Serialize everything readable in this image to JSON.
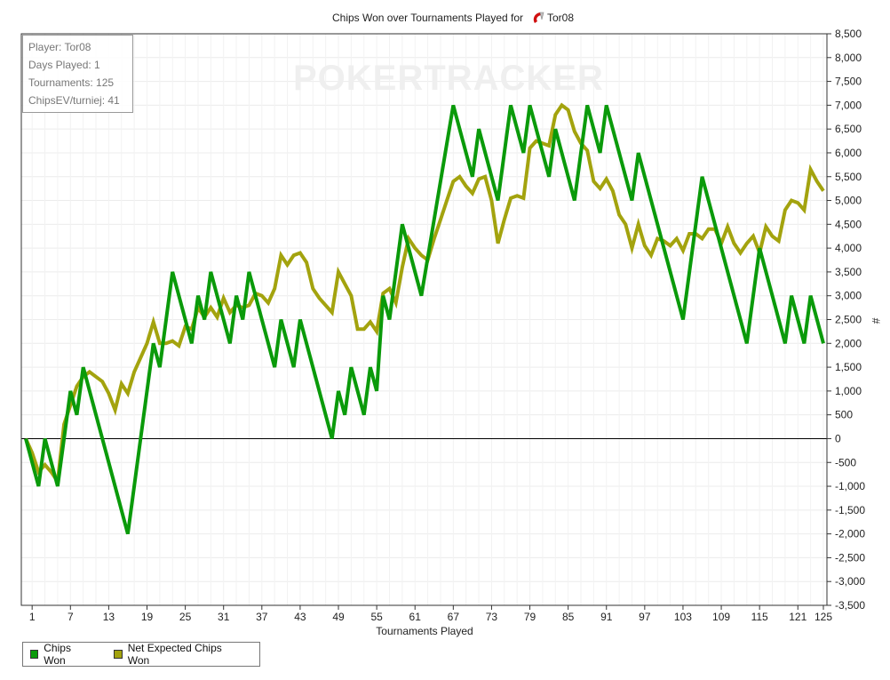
{
  "watermark": "POKERTRACKER",
  "info": {
    "player": "Player: Tor08",
    "days": "Days Played: 1",
    "tournaments": "Tournaments: 125",
    "chipsev": "ChipsEV/turniej: 41"
  },
  "chart_data": {
    "type": "line",
    "title": "Chips Won over Tournaments Played for",
    "title_player": "Tor08",
    "xlabel": "Tournaments Played",
    "ylabel": "#",
    "xlim": [
      0,
      125
    ],
    "ylim": [
      -3500,
      8500
    ],
    "x_ticks": [
      1,
      7,
      13,
      19,
      25,
      31,
      37,
      43,
      49,
      55,
      61,
      67,
      73,
      79,
      85,
      91,
      97,
      103,
      109,
      115,
      121,
      125
    ],
    "y_ticks": [
      8500,
      8000,
      7500,
      7000,
      6500,
      6000,
      5500,
      5000,
      4500,
      4000,
      3500,
      3000,
      2500,
      2000,
      1500,
      1000,
      500,
      0,
      -500,
      -1000,
      -1500,
      -2000,
      -2500,
      -3000,
      -3500
    ],
    "y_tick_labels": [
      "8,500",
      "8,000",
      "7,500",
      "7,000",
      "6,500",
      "6,000",
      "5,500",
      "5,000",
      "4,500",
      "4,000",
      "3,500",
      "3,000",
      "2,500",
      "2,000",
      "1,500",
      "1,000",
      "500",
      "0",
      "-500",
      "-1,000",
      "-1,500",
      "-2,000",
      "-2,500",
      "-3,000",
      "-3,500"
    ],
    "grid": true,
    "legend_position": "bottom-left",
    "series": [
      {
        "name": "Chips Won",
        "color": "#0a9a0a",
        "points": [
          [
            0,
            0
          ],
          [
            2,
            -1000
          ],
          [
            3,
            0
          ],
          [
            5,
            -1000
          ],
          [
            7,
            1000
          ],
          [
            8,
            500
          ],
          [
            9,
            1500
          ],
          [
            16,
            -2000
          ],
          [
            20,
            2000
          ],
          [
            21,
            1500
          ],
          [
            23,
            3500
          ],
          [
            26,
            2000
          ],
          [
            27,
            3000
          ],
          [
            28,
            2500
          ],
          [
            29,
            3500
          ],
          [
            32,
            2000
          ],
          [
            33,
            3000
          ],
          [
            34,
            2500
          ],
          [
            35,
            3500
          ],
          [
            39,
            1500
          ],
          [
            40,
            2500
          ],
          [
            42,
            1500
          ],
          [
            43,
            2500
          ],
          [
            48,
            0
          ],
          [
            49,
            1000
          ],
          [
            50,
            500
          ],
          [
            51,
            1500
          ],
          [
            53,
            500
          ],
          [
            54,
            1500
          ],
          [
            55,
            1000
          ],
          [
            56,
            3000
          ],
          [
            57,
            2500
          ],
          [
            59,
            4500
          ],
          [
            62,
            3000
          ],
          [
            67,
            7000
          ],
          [
            70,
            5500
          ],
          [
            71,
            6500
          ],
          [
            74,
            5000
          ],
          [
            76,
            7000
          ],
          [
            78,
            6000
          ],
          [
            79,
            7000
          ],
          [
            82,
            5500
          ],
          [
            83,
            6500
          ],
          [
            86,
            5000
          ],
          [
            88,
            7000
          ],
          [
            90,
            6000
          ],
          [
            91,
            7000
          ],
          [
            95,
            5000
          ],
          [
            96,
            6000
          ],
          [
            103,
            2500
          ],
          [
            106,
            5500
          ],
          [
            113,
            2000
          ],
          [
            115,
            4000
          ],
          [
            119,
            2000
          ],
          [
            120,
            3000
          ],
          [
            122,
            2000
          ],
          [
            123,
            3000
          ],
          [
            125,
            2000
          ]
        ]
      },
      {
        "name": "Net Expected Chips Won",
        "color": "#a3a30e",
        "points": [
          [
            0,
            0
          ],
          [
            1,
            -300
          ],
          [
            2,
            -700
          ],
          [
            3,
            -550
          ],
          [
            4,
            -700
          ],
          [
            5,
            -900
          ],
          [
            6,
            300
          ],
          [
            7,
            700
          ],
          [
            8,
            1100
          ],
          [
            9,
            1300
          ],
          [
            10,
            1400
          ],
          [
            11,
            1300
          ],
          [
            12,
            1200
          ],
          [
            13,
            950
          ],
          [
            14,
            600
          ],
          [
            15,
            1150
          ],
          [
            16,
            950
          ],
          [
            17,
            1400
          ],
          [
            18,
            1700
          ],
          [
            19,
            2000
          ],
          [
            20,
            2450
          ],
          [
            21,
            2000
          ],
          [
            22,
            2000
          ],
          [
            23,
            2050
          ],
          [
            24,
            1950
          ],
          [
            25,
            2350
          ],
          [
            26,
            2300
          ],
          [
            27,
            2750
          ],
          [
            28,
            2550
          ],
          [
            29,
            2750
          ],
          [
            30,
            2550
          ],
          [
            31,
            2950
          ],
          [
            32,
            2650
          ],
          [
            33,
            2800
          ],
          [
            34,
            2750
          ],
          [
            35,
            2800
          ],
          [
            36,
            3050
          ],
          [
            37,
            3000
          ],
          [
            38,
            2850
          ],
          [
            39,
            3150
          ],
          [
            40,
            3850
          ],
          [
            41,
            3650
          ],
          [
            42,
            3850
          ],
          [
            43,
            3900
          ],
          [
            44,
            3700
          ],
          [
            45,
            3150
          ],
          [
            46,
            2950
          ],
          [
            47,
            2800
          ],
          [
            48,
            2650
          ],
          [
            49,
            3500
          ],
          [
            50,
            3250
          ],
          [
            51,
            3000
          ],
          [
            52,
            2300
          ],
          [
            53,
            2300
          ],
          [
            54,
            2450
          ],
          [
            55,
            2250
          ],
          [
            56,
            3050
          ],
          [
            57,
            3150
          ],
          [
            58,
            2850
          ],
          [
            59,
            3600
          ],
          [
            60,
            4200
          ],
          [
            61,
            4000
          ],
          [
            62,
            3850
          ],
          [
            63,
            3750
          ],
          [
            64,
            4200
          ],
          [
            65,
            4600
          ],
          [
            66,
            5000
          ],
          [
            67,
            5400
          ],
          [
            68,
            5500
          ],
          [
            69,
            5300
          ],
          [
            70,
            5150
          ],
          [
            71,
            5450
          ],
          [
            72,
            5500
          ],
          [
            73,
            5000
          ],
          [
            74,
            4100
          ],
          [
            75,
            4600
          ],
          [
            76,
            5050
          ],
          [
            77,
            5100
          ],
          [
            78,
            5050
          ],
          [
            79,
            6100
          ],
          [
            80,
            6250
          ],
          [
            81,
            6200
          ],
          [
            82,
            6150
          ],
          [
            83,
            6800
          ],
          [
            84,
            7000
          ],
          [
            85,
            6900
          ],
          [
            86,
            6450
          ],
          [
            87,
            6200
          ],
          [
            88,
            6050
          ],
          [
            89,
            5400
          ],
          [
            90,
            5250
          ],
          [
            91,
            5450
          ],
          [
            92,
            5200
          ],
          [
            93,
            4700
          ],
          [
            94,
            4500
          ],
          [
            95,
            4000
          ],
          [
            96,
            4500
          ],
          [
            97,
            4050
          ],
          [
            98,
            3850
          ],
          [
            99,
            4200
          ],
          [
            100,
            4150
          ],
          [
            101,
            4050
          ],
          [
            102,
            4200
          ],
          [
            103,
            3950
          ],
          [
            104,
            4300
          ],
          [
            105,
            4300
          ],
          [
            106,
            4200
          ],
          [
            107,
            4400
          ],
          [
            108,
            4400
          ],
          [
            109,
            4100
          ],
          [
            110,
            4450
          ],
          [
            111,
            4100
          ],
          [
            112,
            3900
          ],
          [
            113,
            4100
          ],
          [
            114,
            4250
          ],
          [
            115,
            3900
          ],
          [
            116,
            4450
          ],
          [
            117,
            4250
          ],
          [
            118,
            4150
          ],
          [
            119,
            4800
          ],
          [
            120,
            5000
          ],
          [
            121,
            4950
          ],
          [
            122,
            4800
          ],
          [
            123,
            5650
          ],
          [
            124,
            5400
          ],
          [
            125,
            5200
          ]
        ]
      }
    ]
  }
}
